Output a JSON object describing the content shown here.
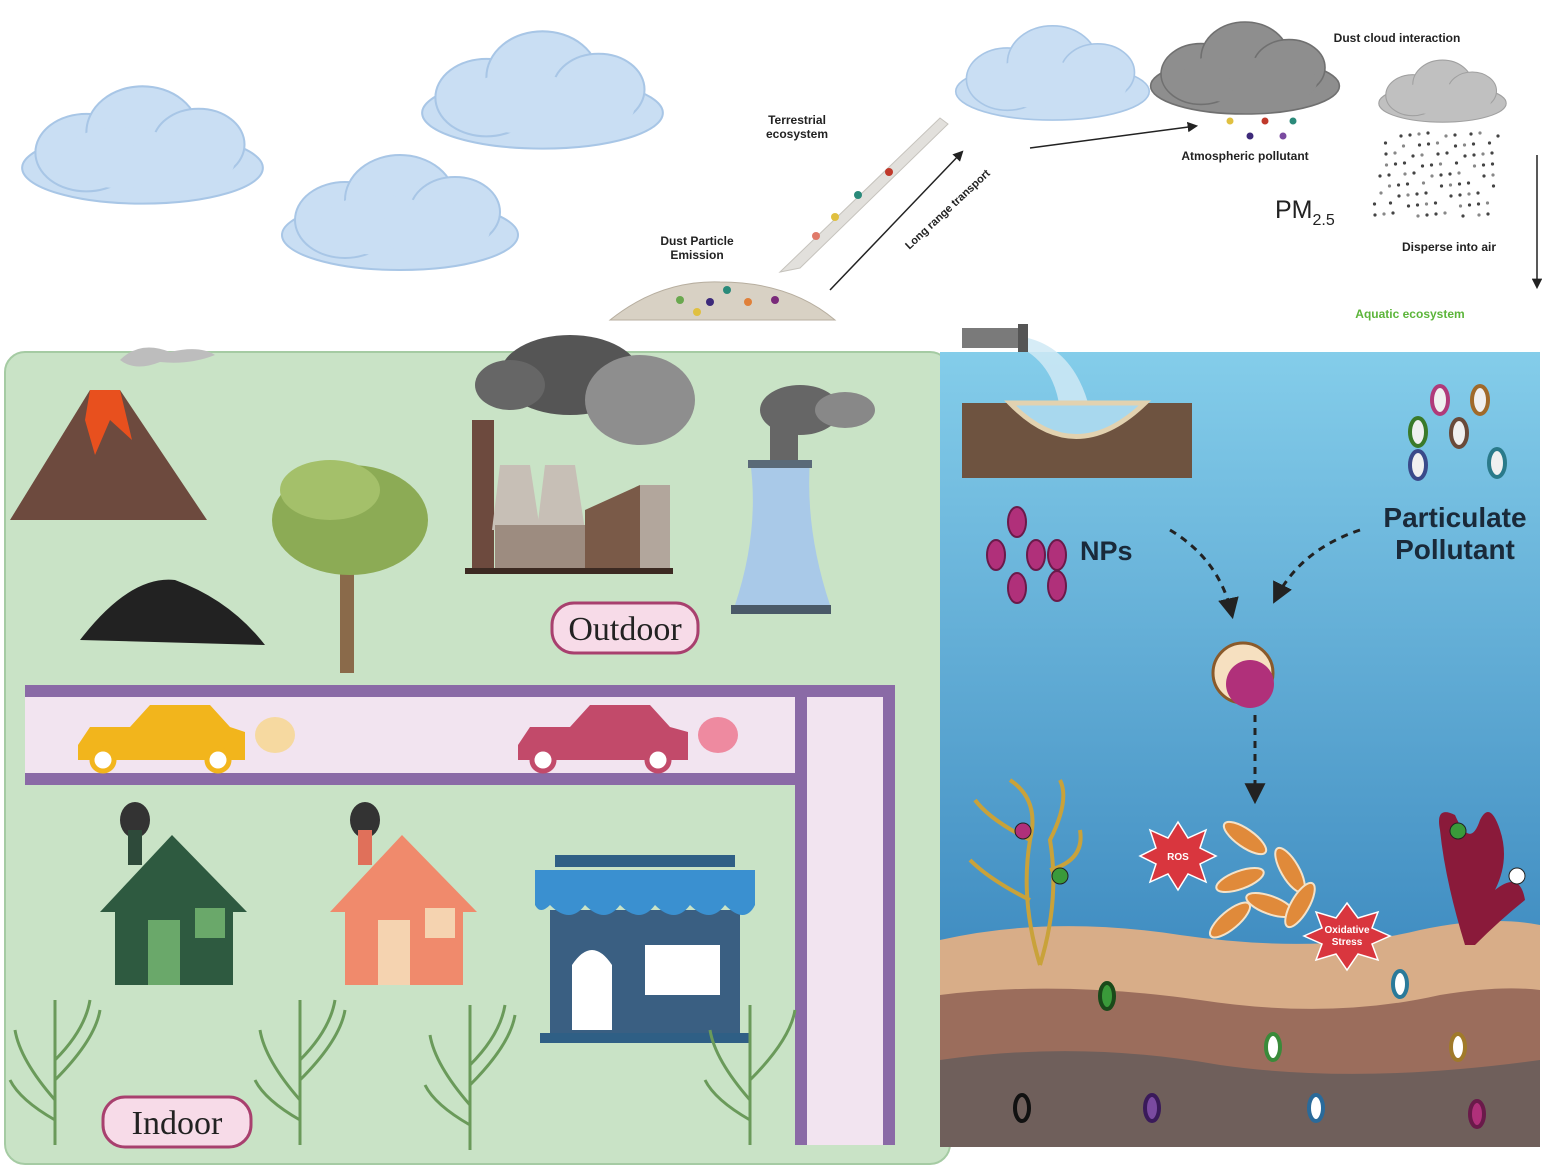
{
  "top": {
    "terrestrial_ecosystem": [
      "Terrestrial",
      "ecosystem"
    ],
    "dust_particle_emission": [
      "Dust Particle",
      "Emission"
    ],
    "long_range_transport": "Long range transport",
    "dust_cloud_interaction": "Dust cloud interaction",
    "atmospheric_pollutant": "Atmospheric pollutant",
    "pm": {
      "base": "PM",
      "subscript": "2.5"
    },
    "disperse_into_air": "Disperse into air",
    "aquatic_ecosystem": "Aquatic ecosystem"
  },
  "land": {
    "outdoor": "Outdoor",
    "indoor": "Indoor"
  },
  "water": {
    "nps": "NPs",
    "particulate_pollutant": [
      "Particulate",
      "Pollutant"
    ],
    "ros": "ROS",
    "oxidative_stress": [
      "Oxidative",
      "Stress"
    ]
  }
}
